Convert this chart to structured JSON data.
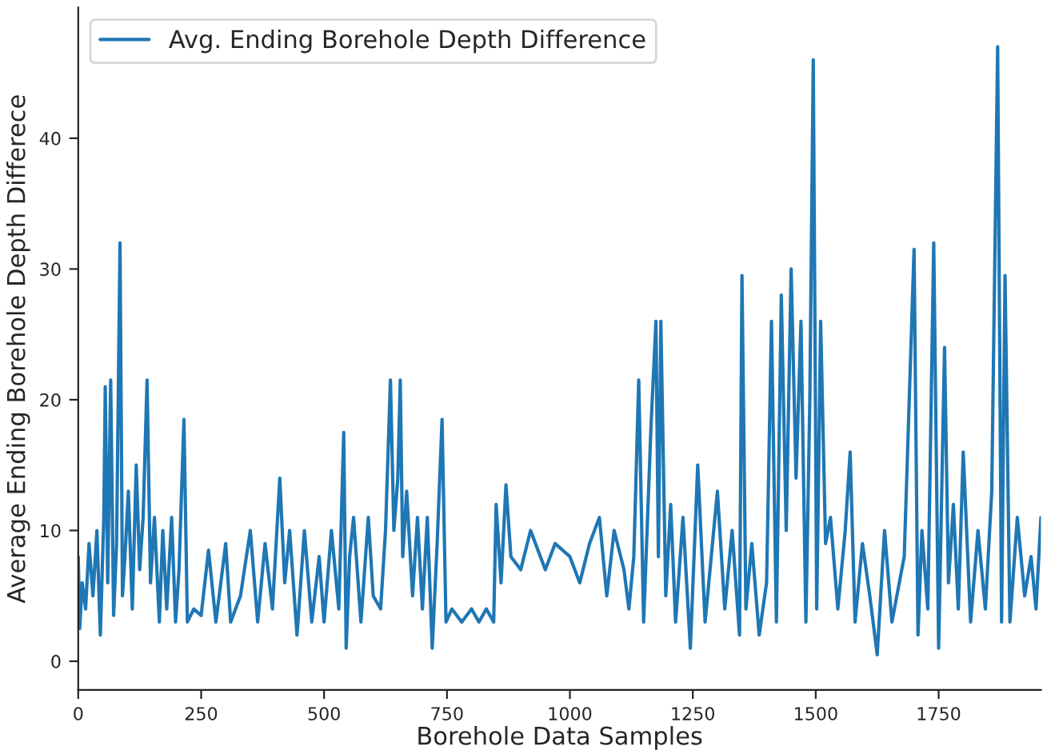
{
  "chart_data": {
    "type": "line",
    "xlabel": "Borehole Data Samples",
    "ylabel": "Average Ending Borehole Depth Differece",
    "xlim": [
      0,
      1958
    ],
    "ylim": [
      -2.2,
      50
    ],
    "xticks": [
      0,
      250,
      500,
      750,
      1000,
      1250,
      1500,
      1750
    ],
    "yticks": [
      0,
      10,
      20,
      30,
      40
    ],
    "legend": "top left",
    "grid": false,
    "series": [
      {
        "name": "Avg. Ending Borehole Depth Difference",
        "color": "#1f77b4",
        "x": [
          0,
          3,
          8,
          15,
          22,
          30,
          38,
          45,
          52,
          55,
          60,
          66,
          72,
          78,
          85,
          90,
          95,
          102,
          110,
          118,
          125,
          132,
          140,
          147,
          155,
          165,
          172,
          180,
          190,
          198,
          205,
          215,
          222,
          235,
          250,
          265,
          280,
          300,
          310,
          330,
          350,
          365,
          380,
          395,
          410,
          420,
          430,
          445,
          460,
          475,
          490,
          500,
          515,
          530,
          540,
          545,
          552,
          560,
          575,
          590,
          600,
          615,
          625,
          635,
          642,
          650,
          655,
          660,
          668,
          680,
          690,
          700,
          710,
          720,
          730,
          740,
          748,
          760,
          780,
          800,
          815,
          830,
          845,
          850,
          860,
          870,
          880,
          900,
          920,
          950,
          970,
          1000,
          1020,
          1040,
          1060,
          1075,
          1090,
          1110,
          1120,
          1130,
          1140,
          1150,
          1165,
          1175,
          1180,
          1185,
          1195,
          1205,
          1215,
          1230,
          1245,
          1260,
          1275,
          1290,
          1300,
          1315,
          1330,
          1345,
          1350,
          1358,
          1370,
          1385,
          1400,
          1410,
          1420,
          1430,
          1440,
          1450,
          1460,
          1470,
          1480,
          1488,
          1495,
          1502,
          1510,
          1520,
          1530,
          1545,
          1560,
          1570,
          1580,
          1595,
          1610,
          1625,
          1640,
          1655,
          1680,
          1700,
          1708,
          1716,
          1728,
          1740,
          1750,
          1762,
          1770,
          1780,
          1790,
          1800,
          1815,
          1830,
          1845,
          1858,
          1870,
          1878,
          1885,
          1895,
          1910,
          1925,
          1938,
          1948,
          1958
        ],
        "values": [
          8,
          2.5,
          6,
          4,
          9,
          5,
          10,
          2,
          11,
          21,
          6,
          21.5,
          3.5,
          9,
          32,
          5,
          8,
          13,
          4,
          15,
          7,
          11,
          21.5,
          6,
          11,
          3,
          10,
          4,
          11,
          3,
          7,
          18.5,
          3,
          4,
          3.5,
          8.5,
          3,
          9,
          3,
          5,
          10,
          3,
          9,
          4,
          14,
          6,
          10,
          2,
          10,
          3,
          8,
          3,
          10,
          4,
          17.5,
          1,
          8,
          11,
          3,
          11,
          5,
          4,
          10,
          21.5,
          10,
          14,
          21.5,
          8,
          13,
          5,
          11,
          4,
          11,
          1,
          9,
          18.5,
          3,
          4,
          3,
          4,
          3,
          4,
          3,
          12,
          6,
          13.5,
          8,
          7,
          10,
          7,
          9,
          8,
          6,
          9,
          11,
          5,
          10,
          7,
          4,
          8,
          21.5,
          3,
          18,
          26,
          8,
          26,
          5,
          12,
          3,
          11,
          1,
          15,
          3,
          9,
          13,
          4,
          10,
          2,
          29.5,
          4,
          9,
          2,
          6,
          26,
          3,
          28,
          10,
          30,
          14,
          26,
          3,
          20,
          46,
          4,
          26,
          9,
          11,
          4,
          10,
          16,
          3,
          9,
          5,
          0.5,
          10,
          3,
          8,
          31.5,
          2,
          10,
          4,
          32,
          1,
          24,
          6,
          12,
          4,
          16,
          3,
          10,
          4,
          13,
          47,
          3,
          29.5,
          3,
          11,
          5,
          8,
          4,
          11
        ]
      }
    ]
  }
}
